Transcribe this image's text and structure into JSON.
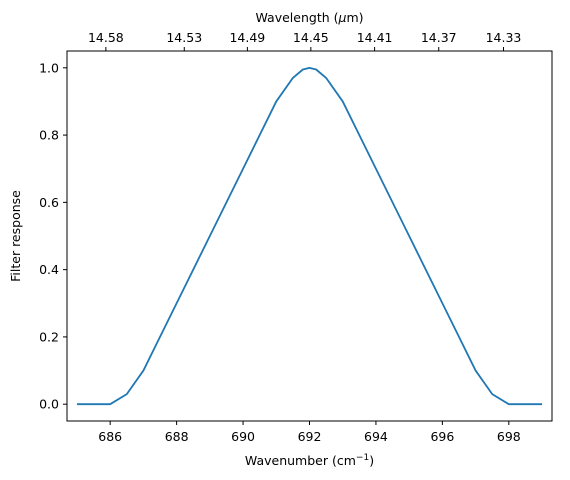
{
  "chart_data": {
    "type": "line",
    "xlabel": "Wavenumber (cm",
    "xlabel_sup": "−1",
    "xlabel_tail": ")",
    "ylabel": "Filter response",
    "top_xlabel": "Wavelength (",
    "top_xlabel_mu": "μ",
    "top_xlabel_tail": "m)",
    "xlim": [
      684.7,
      699.3
    ],
    "ylim": [
      -0.05,
      1.05
    ],
    "x_ticks": [
      686,
      688,
      690,
      692,
      694,
      696,
      698
    ],
    "y_ticks": [
      0.0,
      0.2,
      0.4,
      0.6,
      0.8,
      1.0
    ],
    "y_tick_labels": [
      "0.0",
      "0.2",
      "0.4",
      "0.6",
      "0.8",
      "1.0"
    ],
    "top_ticks": [
      {
        "label": "14.58",
        "wavenumber": 685.87
      },
      {
        "label": "14.53",
        "wavenumber": 688.23
      },
      {
        "label": "14.49",
        "wavenumber": 690.13
      },
      {
        "label": "14.45",
        "wavenumber": 692.04
      },
      {
        "label": "14.41",
        "wavenumber": 693.96
      },
      {
        "label": "14.37",
        "wavenumber": 695.89
      },
      {
        "label": "14.33",
        "wavenumber": 697.84
      }
    ],
    "grid": false,
    "series": [
      {
        "color": "#1f77b4",
        "x": [
          685.0,
          686.0,
          686.5,
          687.0,
          687.5,
          688.0,
          689.0,
          690.0,
          691.0,
          691.5,
          691.8,
          692.0,
          692.2,
          692.5,
          693.0,
          694.0,
          695.0,
          696.0,
          696.5,
          697.0,
          697.5,
          698.0,
          699.0
        ],
        "y": [
          0.0,
          0.0,
          0.03,
          0.1,
          0.2,
          0.3,
          0.5,
          0.7,
          0.9,
          0.97,
          0.995,
          1.0,
          0.995,
          0.97,
          0.9,
          0.7,
          0.5,
          0.3,
          0.2,
          0.1,
          0.03,
          0.0,
          0.0
        ]
      }
    ]
  }
}
